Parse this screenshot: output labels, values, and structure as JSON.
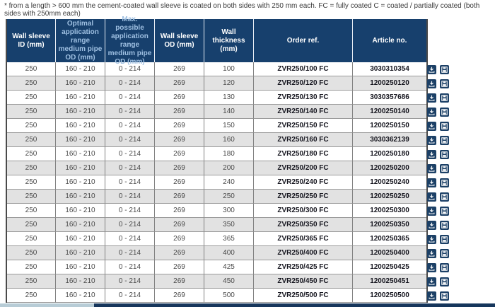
{
  "note": "* from a length > 600 mm the cement-coated wall sleeve is coated on both sides with 250 mm each. FC = fully coated C = coated / partially coated (both sides with 250mm each)",
  "colors": {
    "header_bg": "#17406d",
    "header_text": "#ffffff",
    "header_text_highlight": "#9fc0e2",
    "row_alt_bg": "#e2e2e2",
    "icon_bg": "#1c4066",
    "scrollbar_track": "#16365c",
    "scrollbar_thumb": "#b7ccd6"
  },
  "table": {
    "headers": [
      {
        "label": "Wall sleeve ID (mm)",
        "key": "wall-sleeve-id"
      },
      {
        "label": "Optimal application range medium pipe OD (mm)",
        "key": "optimal-application-range"
      },
      {
        "label": "Max. possible application range medium pipe OD (mm)",
        "key": "max-possible-application-range"
      },
      {
        "label": "Wall sleeve OD (mm)",
        "key": "wall-sleeve-od"
      },
      {
        "label": "Wall thickness (mm)",
        "key": "wall-thickness"
      },
      {
        "label": "Order ref.",
        "key": "order-ref"
      },
      {
        "label": "Article no.",
        "key": "article-no"
      }
    ],
    "row_icons": [
      {
        "name": "download-icon"
      },
      {
        "name": "save-icon"
      }
    ],
    "rows": [
      [
        "250",
        "160 - 210",
        "0 - 214",
        "269",
        "100",
        "ZVR250/100 FC",
        "3030310354"
      ],
      [
        "250",
        "160 - 210",
        "0 - 214",
        "269",
        "120",
        "ZVR250/120 FC",
        "1200250120"
      ],
      [
        "250",
        "160 - 210",
        "0 - 214",
        "269",
        "130",
        "ZVR250/130 FC",
        "3030357686"
      ],
      [
        "250",
        "160 - 210",
        "0 - 214",
        "269",
        "140",
        "ZVR250/140 FC",
        "1200250140"
      ],
      [
        "250",
        "160 - 210",
        "0 - 214",
        "269",
        "150",
        "ZVR250/150 FC",
        "1200250150"
      ],
      [
        "250",
        "160 - 210",
        "0 - 214",
        "269",
        "160",
        "ZVR250/160 FC",
        "3030362139"
      ],
      [
        "250",
        "160 - 210",
        "0 - 214",
        "269",
        "180",
        "ZVR250/180 FC",
        "1200250180"
      ],
      [
        "250",
        "160 - 210",
        "0 - 214",
        "269",
        "200",
        "ZVR250/200 FC",
        "1200250200"
      ],
      [
        "250",
        "160 - 210",
        "0 - 214",
        "269",
        "240",
        "ZVR250/240 FC",
        "1200250240"
      ],
      [
        "250",
        "160 - 210",
        "0 - 214",
        "269",
        "250",
        "ZVR250/250 FC",
        "1200250250"
      ],
      [
        "250",
        "160 - 210",
        "0 - 214",
        "269",
        "300",
        "ZVR250/300 FC",
        "1200250300"
      ],
      [
        "250",
        "160 - 210",
        "0 - 214",
        "269",
        "350",
        "ZVR250/350 FC",
        "1200250350"
      ],
      [
        "250",
        "160 - 210",
        "0 - 214",
        "269",
        "365",
        "ZVR250/365 FC",
        "1200250365"
      ],
      [
        "250",
        "160 - 210",
        "0 - 214",
        "269",
        "400",
        "ZVR250/400 FC",
        "1200250400"
      ],
      [
        "250",
        "160 - 210",
        "0 - 214",
        "269",
        "425",
        "ZVR250/425 FC",
        "1200250425"
      ],
      [
        "250",
        "160 - 210",
        "0 - 214",
        "269",
        "450",
        "ZVR250/450 FC",
        "1200250451"
      ],
      [
        "250",
        "160 - 210",
        "0 - 214",
        "269",
        "500",
        "ZVR250/500 FC",
        "1200250500"
      ]
    ]
  }
}
